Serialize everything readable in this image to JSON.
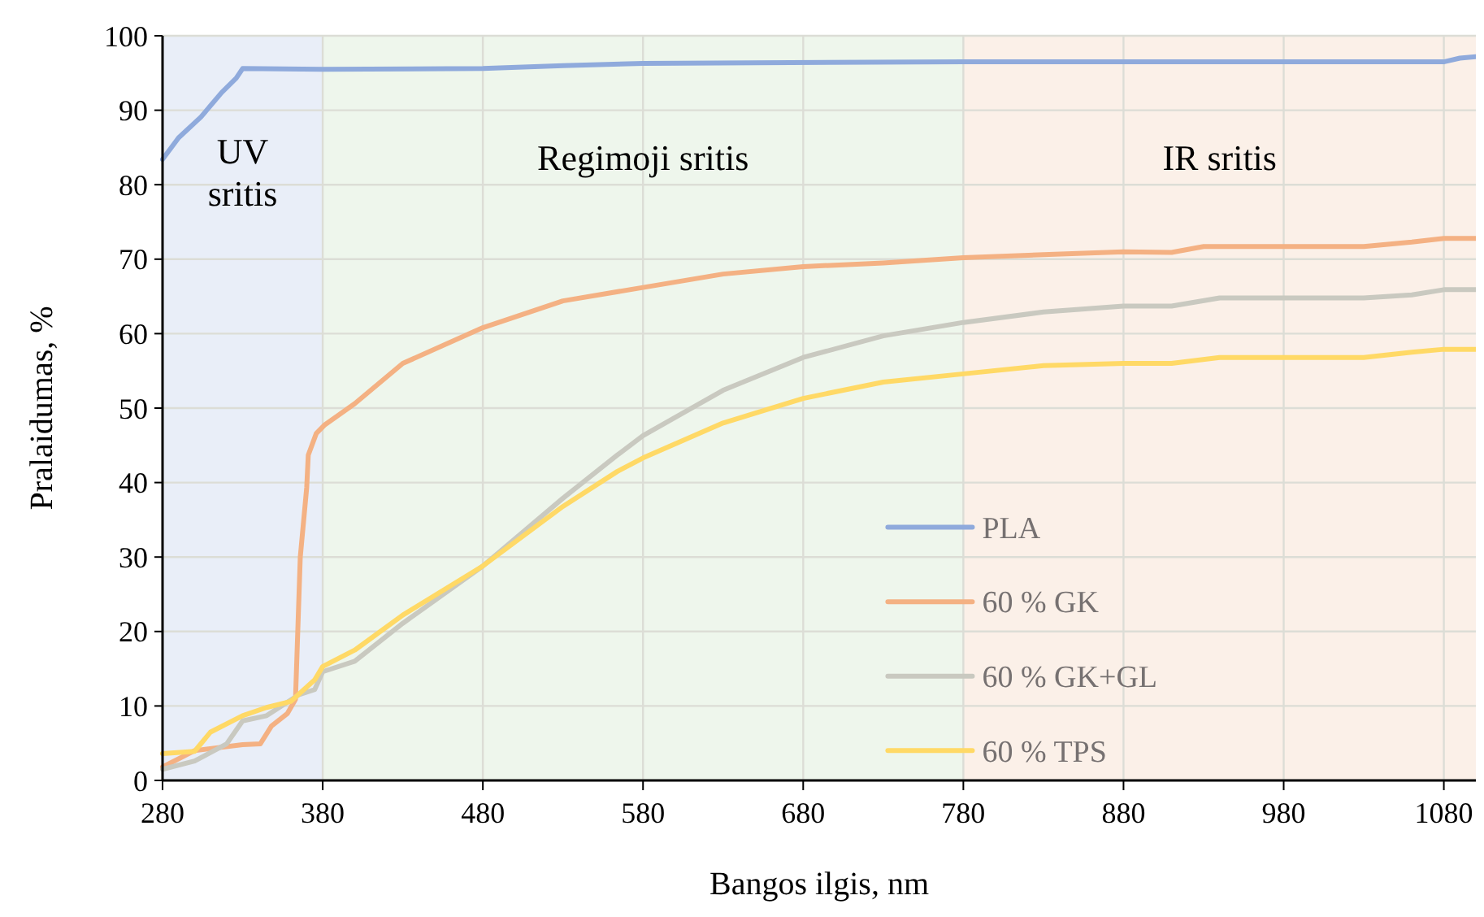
{
  "chart_data": {
    "type": "line",
    "xlabel": "Bangos ilgis, nm",
    "ylabel": "Pralaidumas, %",
    "xlim": [
      280,
      1100
    ],
    "ylim": [
      0,
      100
    ],
    "xticks": [
      280,
      380,
      480,
      580,
      680,
      780,
      880,
      980,
      1080
    ],
    "yticks": [
      0,
      10,
      20,
      30,
      40,
      50,
      60,
      70,
      80,
      90,
      100
    ],
    "grid": true,
    "legend": "bottom right",
    "line_style": "solid",
    "marker": "none",
    "bands": [
      {
        "axis": "x",
        "from": 280,
        "to": 380,
        "label": "UV sritis",
        "color": "#e9eef8"
      },
      {
        "axis": "x",
        "from": 380,
        "to": 780,
        "label": "Regimoji sritis",
        "color": "#eef6ec"
      },
      {
        "axis": "x",
        "from": 780,
        "to": 1100,
        "label": "IR sritis",
        "color": "#fbf0e8"
      }
    ],
    "series": [
      {
        "name": "PLA",
        "color": "#8faadc",
        "x": [
          280,
          290,
          304,
          317,
          326,
          330,
          380,
          480,
          530,
          580,
          780,
          1080,
          1090,
          1100
        ],
        "values": [
          83.4,
          86.3,
          89.1,
          92.4,
          94.3,
          95.6,
          95.5,
          95.6,
          96.0,
          96.3,
          96.5,
          96.5,
          97.0,
          97.2
        ]
      },
      {
        "name": "60 % GK",
        "color": "#f4b183",
        "x": [
          280,
          300,
          330,
          341,
          348,
          358,
          363,
          366,
          370,
          371,
          376,
          381,
          400,
          430,
          480,
          530,
          580,
          630,
          680,
          730,
          780,
          830,
          880,
          910,
          930,
          960,
          1030,
          1060,
          1080,
          1100
        ],
        "values": [
          1.8,
          4.0,
          4.8,
          4.9,
          7.3,
          9.0,
          10.9,
          30,
          39.3,
          43.7,
          46.6,
          47.7,
          50.6,
          56.0,
          60.8,
          64.4,
          66.2,
          68.0,
          69.0,
          69.5,
          70.2,
          70.6,
          71.0,
          70.9,
          71.7,
          71.7,
          71.7,
          72.3,
          72.8,
          72.8
        ]
      },
      {
        "name": "60 % GK+GL",
        "color": "#c9c9c0",
        "x": [
          280,
          300,
          320,
          330,
          345,
          365,
          375,
          380,
          400,
          430,
          480,
          530,
          564,
          580,
          630,
          680,
          730,
          780,
          830,
          880,
          910,
          940,
          1030,
          1060,
          1080,
          1100
        ],
        "values": [
          1.5,
          2.6,
          4.9,
          8.0,
          8.7,
          11.5,
          12.2,
          14.6,
          16.0,
          21.1,
          28.8,
          37.9,
          43.7,
          46.3,
          52.4,
          56.8,
          59.7,
          61.5,
          62.9,
          63.7,
          63.7,
          64.8,
          64.8,
          65.2,
          65.9,
          65.9
        ]
      },
      {
        "name": "60 % TPS",
        "color": "#ffd966",
        "x": [
          280,
          300,
          310,
          330,
          345,
          360,
          375,
          380,
          400,
          430,
          480,
          530,
          564,
          580,
          630,
          680,
          730,
          780,
          830,
          880,
          910,
          940,
          1030,
          1060,
          1080,
          1100
        ],
        "values": [
          3.6,
          3.9,
          6.5,
          8.7,
          9.8,
          10.6,
          13.5,
          15.3,
          17.5,
          22.2,
          28.8,
          36.8,
          41.5,
          43.3,
          48.0,
          51.3,
          53.5,
          54.6,
          55.7,
          56.0,
          56.0,
          56.8,
          56.8,
          57.5,
          57.9,
          57.9
        ]
      }
    ]
  }
}
